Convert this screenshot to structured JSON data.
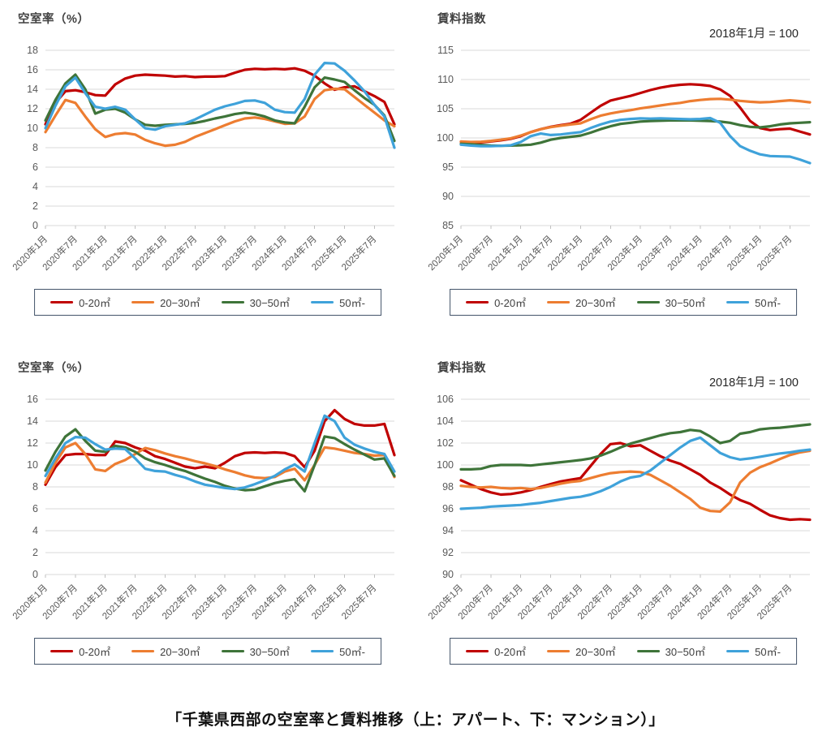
{
  "caption": "「千葉県西部の空室率と賃料推移（上：アパート、下：マンション）」",
  "x_labels": [
    "2020年1月",
    "2020年7月",
    "2021年1月",
    "2021年7月",
    "2022年1月",
    "2022年7月",
    "2023年1月",
    "2023年7月",
    "2024年1月",
    "2024年7月",
    "2025年1月",
    "2025年7月"
  ],
  "legend_labels": [
    "0-20㎡",
    "20−30㎡",
    "30−50㎡",
    "50㎡-"
  ],
  "colors": {
    "size_0_20": "#c00000",
    "size_20_30": "#ed7d31",
    "size_30_50": "#3e7439",
    "size_50_plus": "#3fa2da"
  },
  "chart_data": [
    {
      "id": "apartment-vacancy",
      "type": "line",
      "title": "空室率（%）",
      "subtitle": "",
      "ylim": [
        0,
        18
      ],
      "ytick": 2,
      "grid": true,
      "legend_position": "bottom",
      "x_span_months": 70,
      "x_point_step_months": 2,
      "x_tick_step_months": 6,
      "series": [
        {
          "name": "0-20㎡",
          "color": "#c00000",
          "values": [
            10.4,
            12.6,
            13.8,
            13.9,
            13.7,
            13.4,
            13.35,
            14.5,
            15.1,
            15.4,
            15.5,
            15.45,
            15.4,
            15.3,
            15.35,
            15.25,
            15.3,
            15.3,
            15.35,
            15.7,
            16.0,
            16.1,
            16.05,
            16.1,
            16.05,
            16.15,
            15.9,
            15.4,
            14.6,
            13.95,
            14.2,
            14.3,
            13.8,
            13.3,
            12.7,
            10.4
          ]
        },
        {
          "name": "20−30㎡",
          "color": "#ed7d31",
          "values": [
            9.6,
            11.3,
            12.9,
            12.6,
            11.2,
            9.9,
            9.1,
            9.4,
            9.5,
            9.35,
            8.8,
            8.45,
            8.2,
            8.3,
            8.6,
            9.1,
            9.5,
            9.9,
            10.3,
            10.7,
            11.0,
            11.1,
            10.95,
            10.7,
            10.45,
            10.5,
            11.2,
            13.0,
            13.9,
            14.05,
            14.0,
            13.2,
            12.4,
            11.6,
            10.8,
            10.2
          ]
        },
        {
          "name": "30−50㎡",
          "color": "#3e7439",
          "values": [
            10.8,
            12.9,
            14.6,
            15.5,
            14.0,
            11.5,
            11.9,
            12.0,
            11.6,
            10.9,
            10.35,
            10.25,
            10.35,
            10.4,
            10.45,
            10.55,
            10.75,
            11.0,
            11.2,
            11.45,
            11.6,
            11.45,
            11.2,
            10.8,
            10.6,
            10.5,
            12.2,
            14.2,
            15.2,
            15.0,
            14.75,
            13.9,
            13.1,
            12.4,
            11.3,
            8.7
          ]
        },
        {
          "name": "50㎡-",
          "color": "#3fa2da",
          "values": [
            10.0,
            12.3,
            14.3,
            15.2,
            13.6,
            12.2,
            12.0,
            12.2,
            11.9,
            10.9,
            10.0,
            9.85,
            10.2,
            10.35,
            10.5,
            10.9,
            11.4,
            11.9,
            12.25,
            12.5,
            12.8,
            12.85,
            12.6,
            11.9,
            11.65,
            11.6,
            13.0,
            15.5,
            16.7,
            16.65,
            15.9,
            14.9,
            13.8,
            12.4,
            11.2,
            8.0
          ]
        }
      ]
    },
    {
      "id": "apartment-rent-index",
      "type": "line",
      "title": "賃料指数",
      "subtitle": "2018年1月 = 100",
      "ylim": [
        85,
        115
      ],
      "ytick": 5,
      "grid": true,
      "legend_position": "bottom",
      "x_span_months": 70,
      "x_point_step_months": 2,
      "x_tick_step_months": 6,
      "series": [
        {
          "name": "0-20㎡",
          "color": "#c00000",
          "values": [
            99.35,
            99.2,
            99.25,
            99.4,
            99.6,
            99.85,
            100.3,
            101.0,
            101.5,
            101.9,
            102.2,
            102.45,
            103.1,
            104.3,
            105.5,
            106.4,
            106.8,
            107.2,
            107.7,
            108.2,
            108.6,
            108.9,
            109.1,
            109.2,
            109.1,
            108.9,
            108.3,
            107.2,
            105.2,
            102.9,
            101.7,
            101.35,
            101.5,
            101.6,
            101.1,
            100.6
          ]
        },
        {
          "name": "20−30㎡",
          "color": "#ed7d31",
          "values": [
            99.4,
            99.3,
            99.35,
            99.5,
            99.7,
            99.95,
            100.4,
            101.0,
            101.5,
            101.85,
            102.1,
            102.3,
            102.5,
            103.2,
            103.8,
            104.2,
            104.5,
            104.75,
            105.05,
            105.3,
            105.55,
            105.8,
            106.0,
            106.3,
            106.5,
            106.65,
            106.7,
            106.55,
            106.35,
            106.2,
            106.1,
            106.15,
            106.3,
            106.45,
            106.3,
            106.1
          ]
        },
        {
          "name": "30−50㎡",
          "color": "#3e7439",
          "values": [
            99.0,
            98.9,
            98.8,
            98.7,
            98.65,
            98.7,
            98.75,
            98.85,
            99.2,
            99.7,
            100.0,
            100.2,
            100.4,
            100.9,
            101.5,
            102.0,
            102.4,
            102.6,
            102.8,
            102.9,
            102.95,
            103.0,
            103.0,
            103.0,
            102.95,
            102.9,
            102.8,
            102.6,
            102.2,
            101.9,
            101.8,
            102.0,
            102.3,
            102.5,
            102.6,
            102.7
          ]
        },
        {
          "name": "50㎡-",
          "color": "#3fa2da",
          "values": [
            98.85,
            98.7,
            98.6,
            98.6,
            98.65,
            98.75,
            99.3,
            100.3,
            100.75,
            100.5,
            100.6,
            100.8,
            101.0,
            101.7,
            102.3,
            102.8,
            103.1,
            103.25,
            103.35,
            103.3,
            103.35,
            103.3,
            103.25,
            103.2,
            103.25,
            103.4,
            102.6,
            100.3,
            98.6,
            97.8,
            97.2,
            96.9,
            96.85,
            96.8,
            96.3,
            95.7
          ]
        }
      ]
    },
    {
      "id": "mansion-vacancy",
      "type": "line",
      "title": "空室率（%）",
      "subtitle": "",
      "ylim": [
        0,
        16
      ],
      "ytick": 2,
      "grid": true,
      "legend_position": "bottom",
      "x_span_months": 70,
      "x_point_step_months": 2,
      "x_tick_step_months": 6,
      "series": [
        {
          "name": "0-20㎡",
          "color": "#c00000",
          "values": [
            8.2,
            9.8,
            10.9,
            11.0,
            11.0,
            10.9,
            10.9,
            12.15,
            12.0,
            11.6,
            11.3,
            10.8,
            10.55,
            10.2,
            9.85,
            9.7,
            9.85,
            9.7,
            10.2,
            10.8,
            11.1,
            11.15,
            11.1,
            11.15,
            11.1,
            10.8,
            9.8,
            11.3,
            14.0,
            15.0,
            14.2,
            13.75,
            13.6,
            13.6,
            13.75,
            10.9
          ]
        },
        {
          "name": "20−30㎡",
          "color": "#ed7d31",
          "values": [
            8.4,
            10.2,
            11.6,
            12.0,
            11.0,
            9.6,
            9.45,
            10.1,
            10.45,
            11.0,
            11.55,
            11.35,
            11.05,
            10.8,
            10.6,
            10.35,
            10.15,
            9.9,
            9.6,
            9.35,
            9.05,
            8.85,
            8.8,
            8.9,
            9.4,
            9.65,
            8.6,
            10.0,
            11.6,
            11.5,
            11.3,
            11.1,
            11.0,
            10.85,
            10.9,
            8.9
          ]
        },
        {
          "name": "30−50㎡",
          "color": "#3e7439",
          "values": [
            9.5,
            11.2,
            12.6,
            13.25,
            12.2,
            11.3,
            11.2,
            11.75,
            11.6,
            11.2,
            10.6,
            10.25,
            10.0,
            9.7,
            9.45,
            9.1,
            8.75,
            8.45,
            8.1,
            7.85,
            7.7,
            7.75,
            8.05,
            8.35,
            8.55,
            8.7,
            7.6,
            10.0,
            12.6,
            12.45,
            11.9,
            11.4,
            10.95,
            10.5,
            10.6,
            9.0
          ]
        },
        {
          "name": "50㎡-",
          "color": "#3fa2da",
          "values": [
            9.0,
            10.6,
            12.0,
            12.55,
            12.5,
            11.9,
            11.4,
            11.5,
            11.45,
            10.6,
            9.65,
            9.45,
            9.4,
            9.1,
            8.85,
            8.5,
            8.2,
            8.05,
            7.9,
            7.8,
            7.95,
            8.25,
            8.6,
            9.0,
            9.6,
            10.05,
            9.4,
            12.0,
            14.5,
            14.0,
            12.5,
            11.85,
            11.5,
            11.2,
            11.0,
            9.4
          ]
        }
      ]
    },
    {
      "id": "mansion-rent-index",
      "type": "line",
      "title": "賃料指数",
      "subtitle": "2018年1月 = 100",
      "ylim": [
        90,
        106
      ],
      "ytick": 2,
      "grid": true,
      "legend_position": "bottom",
      "x_span_months": 70,
      "x_point_step_months": 2,
      "x_tick_step_months": 6,
      "series": [
        {
          "name": "0-20㎡",
          "color": "#c00000",
          "values": [
            98.6,
            98.2,
            97.8,
            97.5,
            97.3,
            97.35,
            97.5,
            97.7,
            98.0,
            98.25,
            98.5,
            98.65,
            98.8,
            99.9,
            101.0,
            101.9,
            102.0,
            101.7,
            101.8,
            101.3,
            100.8,
            100.4,
            100.1,
            99.6,
            99.1,
            98.4,
            97.9,
            97.3,
            96.8,
            96.45,
            95.9,
            95.4,
            95.15,
            95.0,
            95.05,
            95.0
          ]
        },
        {
          "name": "20−30㎡",
          "color": "#ed7d31",
          "values": [
            98.1,
            98.0,
            97.95,
            98.0,
            97.9,
            97.85,
            97.9,
            97.8,
            97.9,
            98.1,
            98.3,
            98.45,
            98.55,
            98.8,
            99.05,
            99.25,
            99.35,
            99.4,
            99.35,
            99.1,
            98.6,
            98.1,
            97.5,
            96.9,
            96.1,
            95.8,
            95.75,
            96.6,
            98.4,
            99.3,
            99.8,
            100.15,
            100.55,
            100.9,
            101.15,
            101.3
          ]
        },
        {
          "name": "30−50㎡",
          "color": "#3e7439",
          "values": [
            99.6,
            99.6,
            99.65,
            99.9,
            100.0,
            100.0,
            100.0,
            99.95,
            100.05,
            100.15,
            100.25,
            100.35,
            100.45,
            100.6,
            100.85,
            101.2,
            101.6,
            101.95,
            102.2,
            102.45,
            102.7,
            102.9,
            103.0,
            103.2,
            103.1,
            102.6,
            102.0,
            102.2,
            102.85,
            103.0,
            103.25,
            103.35,
            103.4,
            103.5,
            103.6,
            103.7
          ]
        },
        {
          "name": "50㎡-",
          "color": "#3fa2da",
          "values": [
            96.0,
            96.05,
            96.1,
            96.2,
            96.25,
            96.3,
            96.35,
            96.45,
            96.55,
            96.7,
            96.85,
            97.0,
            97.1,
            97.3,
            97.6,
            98.0,
            98.5,
            98.85,
            99.0,
            99.5,
            100.2,
            100.9,
            101.6,
            102.2,
            102.5,
            101.8,
            101.1,
            100.7,
            100.5,
            100.6,
            100.75,
            100.9,
            101.05,
            101.15,
            101.3,
            101.4
          ]
        }
      ]
    }
  ]
}
